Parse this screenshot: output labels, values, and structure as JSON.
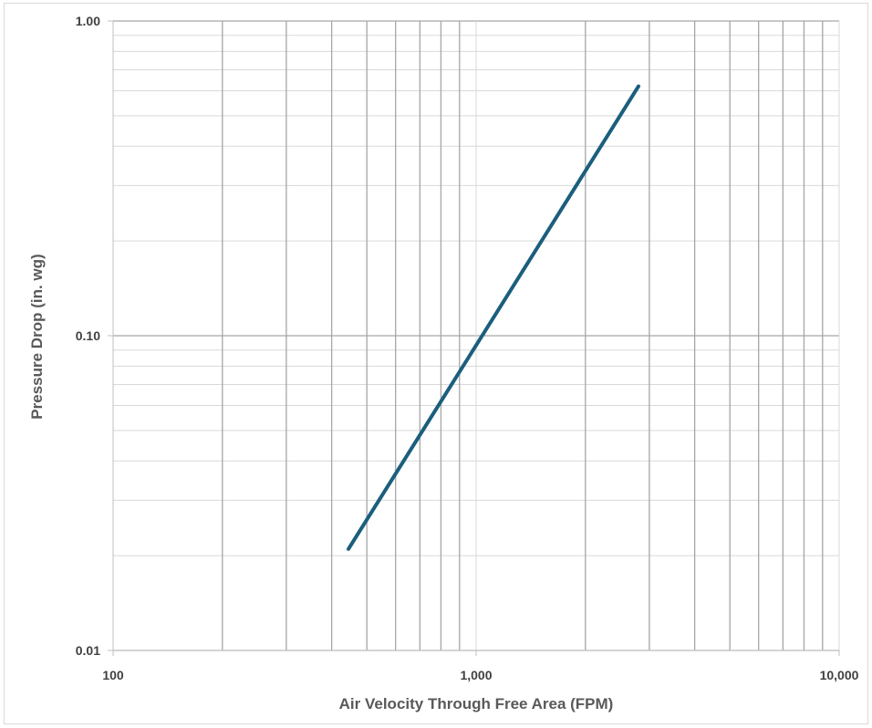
{
  "chart_data": {
    "type": "line",
    "title": "",
    "xlabel": "Air Velocity Through Free Area (FPM)",
    "ylabel": "Pressure Drop (in. wg)",
    "x_scale": "log",
    "y_scale": "log",
    "xlim": [
      100,
      10000
    ],
    "ylim": [
      0.01,
      1.0
    ],
    "x_tick_labels": [
      "100",
      "1,000",
      "10,000"
    ],
    "y_tick_labels": [
      "1.00",
      "0.10",
      "0.01"
    ],
    "x_tick_values": [
      100,
      1000,
      10000
    ],
    "y_tick_values": [
      1.0,
      0.1,
      0.01
    ],
    "grid": true,
    "legend": "none",
    "series": [
      {
        "color": "#1b5e7e",
        "x": [
          445,
          2800
        ],
        "y": [
          0.021,
          0.62
        ]
      }
    ]
  }
}
